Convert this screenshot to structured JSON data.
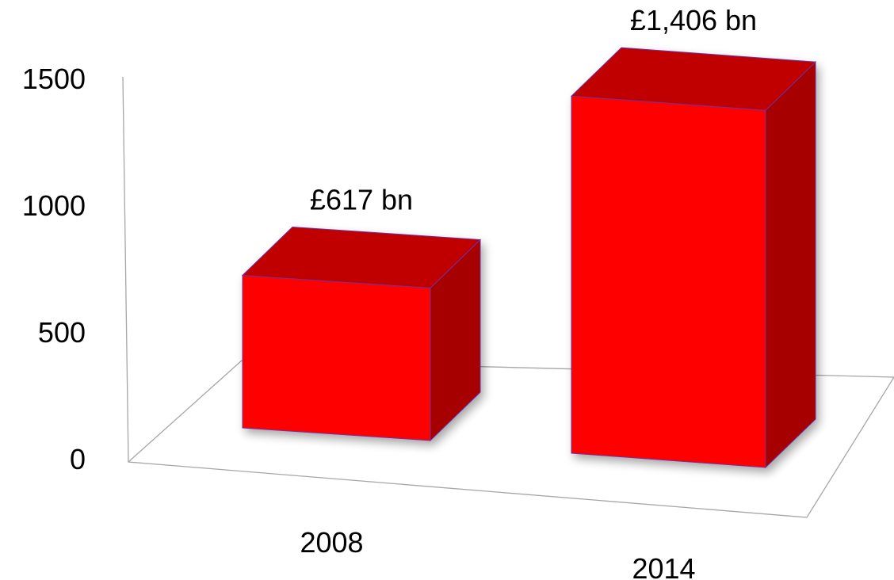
{
  "chart_data": {
    "type": "bar",
    "title": "",
    "xlabel": "",
    "ylabel": "",
    "categories": [
      "2008",
      "2014"
    ],
    "values": [
      617,
      1406
    ],
    "data_labels": [
      "£617 bn",
      "£1,406 bn"
    ],
    "ylim": [
      0,
      1500
    ],
    "yticks": [
      0,
      500,
      1000,
      1500
    ],
    "grid": false,
    "legend": "none",
    "style": "3d-column",
    "colors": {
      "front": "#ff0000",
      "top": "#c00000",
      "side": "#a60000",
      "edge": "#7030a0",
      "axis": "#a6a6a6"
    }
  }
}
